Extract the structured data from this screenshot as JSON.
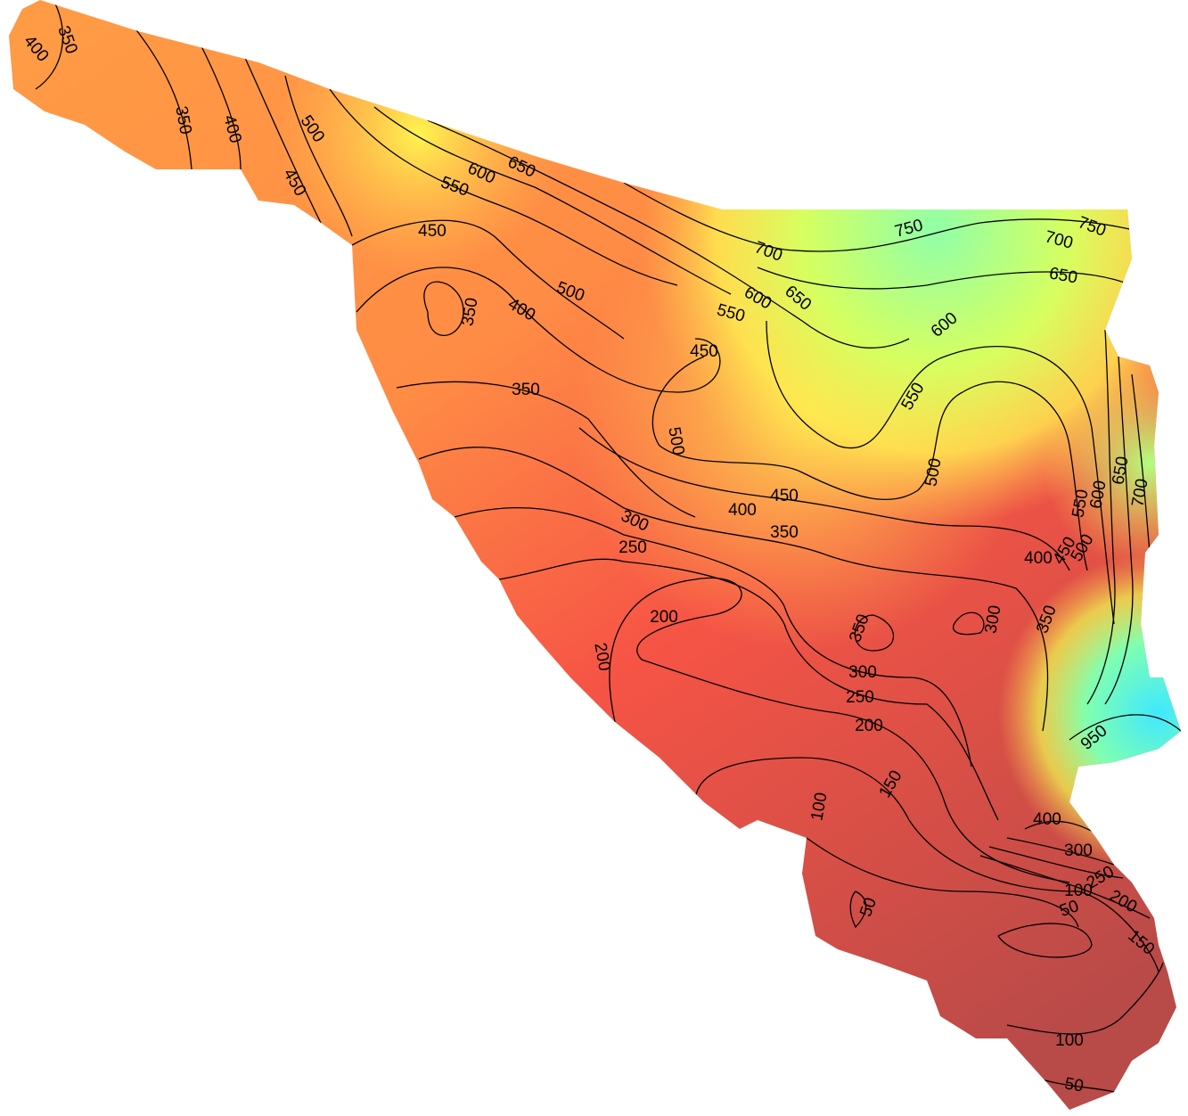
{
  "contour_labels": [
    350,
    400,
    350,
    400,
    450,
    500,
    600,
    650,
    550,
    450,
    500,
    400,
    350,
    350,
    450,
    550,
    600,
    650,
    700,
    750,
    750,
    700,
    650,
    600,
    550,
    500,
    500,
    450,
    400,
    350,
    300,
    250,
    200,
    200,
    350,
    300,
    350,
    400,
    450,
    500,
    550,
    600,
    650,
    700,
    300,
    250,
    200,
    150,
    100,
    50,
    100,
    50,
    200,
    150,
    100,
    50,
    250,
    300,
    400,
    950
  ]
}
